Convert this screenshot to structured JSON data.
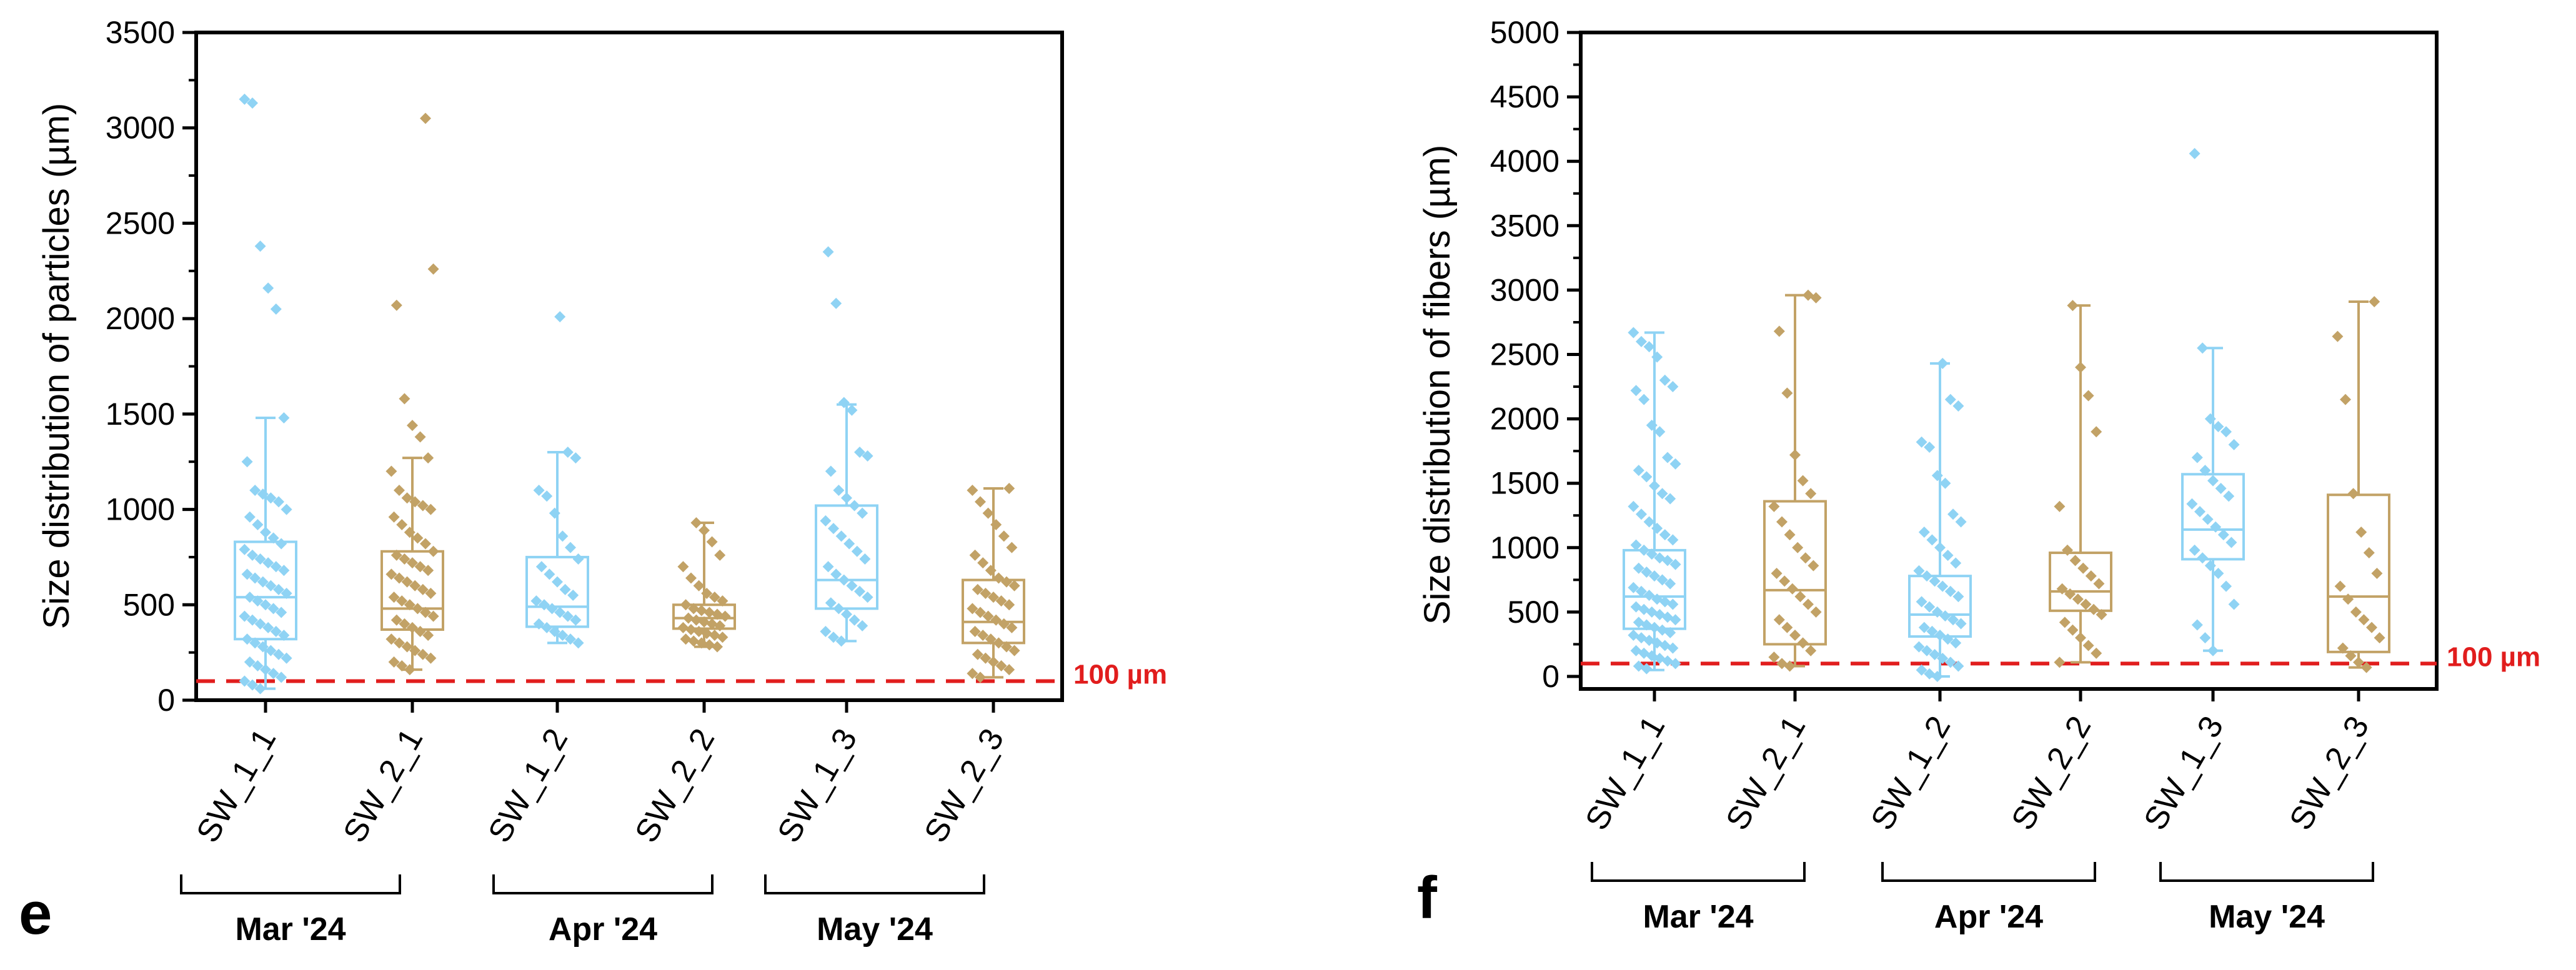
{
  "colors": {
    "blue": "#8fd3f4",
    "gold": "#c2a266",
    "red": "#e11d1d",
    "axis": "#000000"
  },
  "chart_data": [
    {
      "type": "box",
      "panel": "e",
      "ylabel": "Size distribution of particles (µm)",
      "xlabel": "",
      "ylim": [
        0,
        3500
      ],
      "yticks": [
        0,
        500,
        1000,
        1500,
        2000,
        2500,
        3000,
        3500
      ],
      "ytick_labels": [
        "0",
        "500",
        "1000",
        "1500",
        "2000",
        "2500",
        "3000",
        "3500"
      ],
      "reference_line": {
        "value": 100,
        "label": "100 µm",
        "color": "#e11d1d",
        "style": "dashed"
      },
      "categories": [
        "SW_1_1",
        "SW_2_1",
        "SW_1_2",
        "SW_2_2",
        "SW_1_3",
        "SW_2_3"
      ],
      "groups": [
        {
          "label": "Mar '24",
          "categories": [
            "SW_1_1",
            "SW_2_1"
          ]
        },
        {
          "label": "Apr '24",
          "categories": [
            "SW_1_2",
            "SW_2_2"
          ]
        },
        {
          "label": "May '24",
          "categories": [
            "SW_1_3",
            "SW_2_3"
          ]
        }
      ],
      "series": [
        {
          "name": "SW_1_1",
          "color": "blue",
          "q1": 320,
          "median": 540,
          "q3": 830,
          "whisker_low": 60,
          "whisker_high": 1480,
          "points": [
            3150,
            3130,
            2380,
            2160,
            2050,
            1480,
            1250,
            1100,
            1080,
            1060,
            1040,
            1000,
            960,
            920,
            880,
            850,
            820,
            790,
            760,
            740,
            720,
            700,
            680,
            660,
            640,
            620,
            600,
            580,
            560,
            540,
            520,
            500,
            480,
            460,
            440,
            420,
            400,
            380,
            360,
            340,
            320,
            300,
            280,
            260,
            240,
            220,
            200,
            180,
            160,
            140,
            120,
            100,
            80,
            60
          ]
        },
        {
          "name": "SW_2_1",
          "color": "gold",
          "q1": 370,
          "median": 480,
          "q3": 780,
          "whisker_low": 160,
          "whisker_high": 1270,
          "points": [
            3050,
            2260,
            2070,
            1580,
            1440,
            1380,
            1270,
            1200,
            1100,
            1060,
            1040,
            1020,
            1000,
            960,
            920,
            880,
            850,
            820,
            780,
            760,
            740,
            720,
            700,
            680,
            660,
            640,
            620,
            600,
            580,
            560,
            540,
            520,
            500,
            480,
            460,
            440,
            420,
            400,
            380,
            360,
            340,
            320,
            300,
            280,
            260,
            240,
            220,
            200,
            180,
            160
          ]
        },
        {
          "name": "SW_1_2",
          "color": "blue",
          "q1": 385,
          "median": 490,
          "q3": 750,
          "whisker_low": 300,
          "whisker_high": 1300,
          "points": [
            2010,
            1300,
            1270,
            1100,
            1070,
            980,
            860,
            800,
            740,
            700,
            660,
            620,
            580,
            550,
            520,
            500,
            480,
            460,
            440,
            420,
            400,
            380,
            360,
            340,
            320,
            300
          ]
        },
        {
          "name": "SW_2_2",
          "color": "gold",
          "q1": 375,
          "median": 430,
          "q3": 500,
          "whisker_low": 280,
          "whisker_high": 930,
          "points": [
            930,
            890,
            830,
            760,
            700,
            640,
            600,
            560,
            540,
            520,
            500,
            480,
            470,
            460,
            450,
            440,
            430,
            420,
            410,
            400,
            390,
            380,
            370,
            360,
            350,
            340,
            330,
            320,
            310,
            300,
            290,
            280
          ]
        },
        {
          "name": "SW_1_3",
          "color": "blue",
          "q1": 480,
          "median": 630,
          "q3": 1020,
          "whisker_low": 310,
          "whisker_high": 1550,
          "points": [
            2350,
            2080,
            1560,
            1520,
            1300,
            1280,
            1200,
            1100,
            1060,
            1020,
            980,
            940,
            900,
            860,
            820,
            780,
            740,
            700,
            660,
            630,
            600,
            570,
            540,
            510,
            480,
            450,
            420,
            390,
            360,
            330,
            310
          ]
        },
        {
          "name": "SW_2_3",
          "color": "gold",
          "q1": 300,
          "median": 410,
          "q3": 630,
          "whisker_low": 120,
          "whisker_high": 1110,
          "points": [
            1110,
            1100,
            1040,
            980,
            920,
            860,
            800,
            760,
            720,
            680,
            640,
            620,
            600,
            580,
            560,
            540,
            520,
            500,
            480,
            460,
            440,
            420,
            400,
            380,
            360,
            340,
            320,
            300,
            280,
            260,
            240,
            220,
            200,
            180,
            160,
            140,
            120
          ]
        }
      ]
    },
    {
      "type": "box",
      "panel": "f",
      "ylabel": "Size distribution of fibers (µm)",
      "xlabel": "",
      "ylim": [
        0,
        5000
      ],
      "yticks": [
        0,
        500,
        1000,
        1500,
        2000,
        2500,
        3000,
        3500,
        4000,
        4500,
        5000
      ],
      "ytick_labels": [
        "0",
        "500",
        "1000",
        "1500",
        "2000",
        "2500",
        "3000",
        "3500",
        "4000",
        "4500",
        "5000"
      ],
      "reference_line": {
        "value": 100,
        "label": "100 µm",
        "color": "#e11d1d",
        "style": "dashed"
      },
      "categories": [
        "SW_1_1",
        "SW_2_1",
        "SW_1_2",
        "SW_2_2",
        "SW_1_3",
        "SW_2_3"
      ],
      "groups": [
        {
          "label": "Mar '24",
          "categories": [
            "SW_1_1",
            "SW_2_1"
          ]
        },
        {
          "label": "Apr '24",
          "categories": [
            "SW_1_2",
            "SW_2_2"
          ]
        },
        {
          "label": "May '24",
          "categories": [
            "SW_1_3",
            "SW_2_3"
          ]
        }
      ],
      "series": [
        {
          "name": "SW_1_1",
          "color": "blue",
          "q1": 370,
          "median": 620,
          "q3": 980,
          "whisker_low": 50,
          "whisker_high": 2670,
          "points": [
            2670,
            2600,
            2560,
            2480,
            2300,
            2250,
            2220,
            2150,
            1950,
            1900,
            1700,
            1650,
            1600,
            1550,
            1480,
            1420,
            1380,
            1320,
            1260,
            1200,
            1150,
            1100,
            1060,
            1020,
            980,
            950,
            920,
            900,
            870,
            840,
            810,
            780,
            750,
            720,
            690,
            660,
            630,
            600,
            580,
            560,
            540,
            520,
            500,
            480,
            460,
            440,
            420,
            400,
            380,
            360,
            340,
            320,
            300,
            280,
            260,
            240,
            220,
            200,
            180,
            160,
            140,
            120,
            100,
            80,
            60
          ]
        },
        {
          "name": "SW_2_1",
          "color": "gold",
          "q1": 250,
          "median": 670,
          "q3": 1360,
          "whisker_low": 80,
          "whisker_high": 2960,
          "points": [
            2960,
            2940,
            2680,
            2200,
            1720,
            1520,
            1420,
            1320,
            1200,
            1100,
            1000,
            920,
            860,
            800,
            740,
            680,
            620,
            560,
            500,
            440,
            380,
            320,
            260,
            200,
            150,
            100,
            80
          ]
        },
        {
          "name": "SW_1_2",
          "color": "blue",
          "q1": 310,
          "median": 480,
          "q3": 780,
          "whisker_low": 0,
          "whisker_high": 2430,
          "points": [
            2430,
            2150,
            2100,
            1820,
            1780,
            1560,
            1500,
            1260,
            1200,
            1120,
            1060,
            1000,
            940,
            880,
            820,
            780,
            740,
            700,
            660,
            620,
            580,
            540,
            500,
            470,
            440,
            410,
            380,
            350,
            320,
            290,
            260,
            230,
            200,
            170,
            140,
            110,
            80,
            50,
            20,
            0
          ]
        },
        {
          "name": "SW_2_2",
          "color": "gold",
          "q1": 510,
          "median": 660,
          "q3": 960,
          "whisker_low": 110,
          "whisker_high": 2880,
          "points": [
            2880,
            2400,
            2180,
            1900,
            1320,
            980,
            900,
            840,
            780,
            720,
            680,
            640,
            600,
            560,
            520,
            480,
            420,
            360,
            300,
            240,
            180,
            110
          ]
        },
        {
          "name": "SW_1_3",
          "color": "blue",
          "q1": 910,
          "median": 1140,
          "q3": 1570,
          "whisker_low": 200,
          "whisker_high": 2550,
          "points": [
            4060,
            2550,
            2000,
            1940,
            1900,
            1800,
            1700,
            1600,
            1520,
            1460,
            1400,
            1340,
            1280,
            1220,
            1160,
            1100,
            1040,
            980,
            920,
            860,
            800,
            700,
            560,
            400,
            300,
            200
          ]
        },
        {
          "name": "SW_2_3",
          "color": "gold",
          "q1": 190,
          "median": 620,
          "q3": 1410,
          "whisker_low": 70,
          "whisker_high": 2910,
          "points": [
            2910,
            2640,
            2150,
            1420,
            1120,
            960,
            800,
            700,
            600,
            500,
            440,
            380,
            300,
            220,
            160,
            110,
            70
          ]
        }
      ]
    }
  ]
}
